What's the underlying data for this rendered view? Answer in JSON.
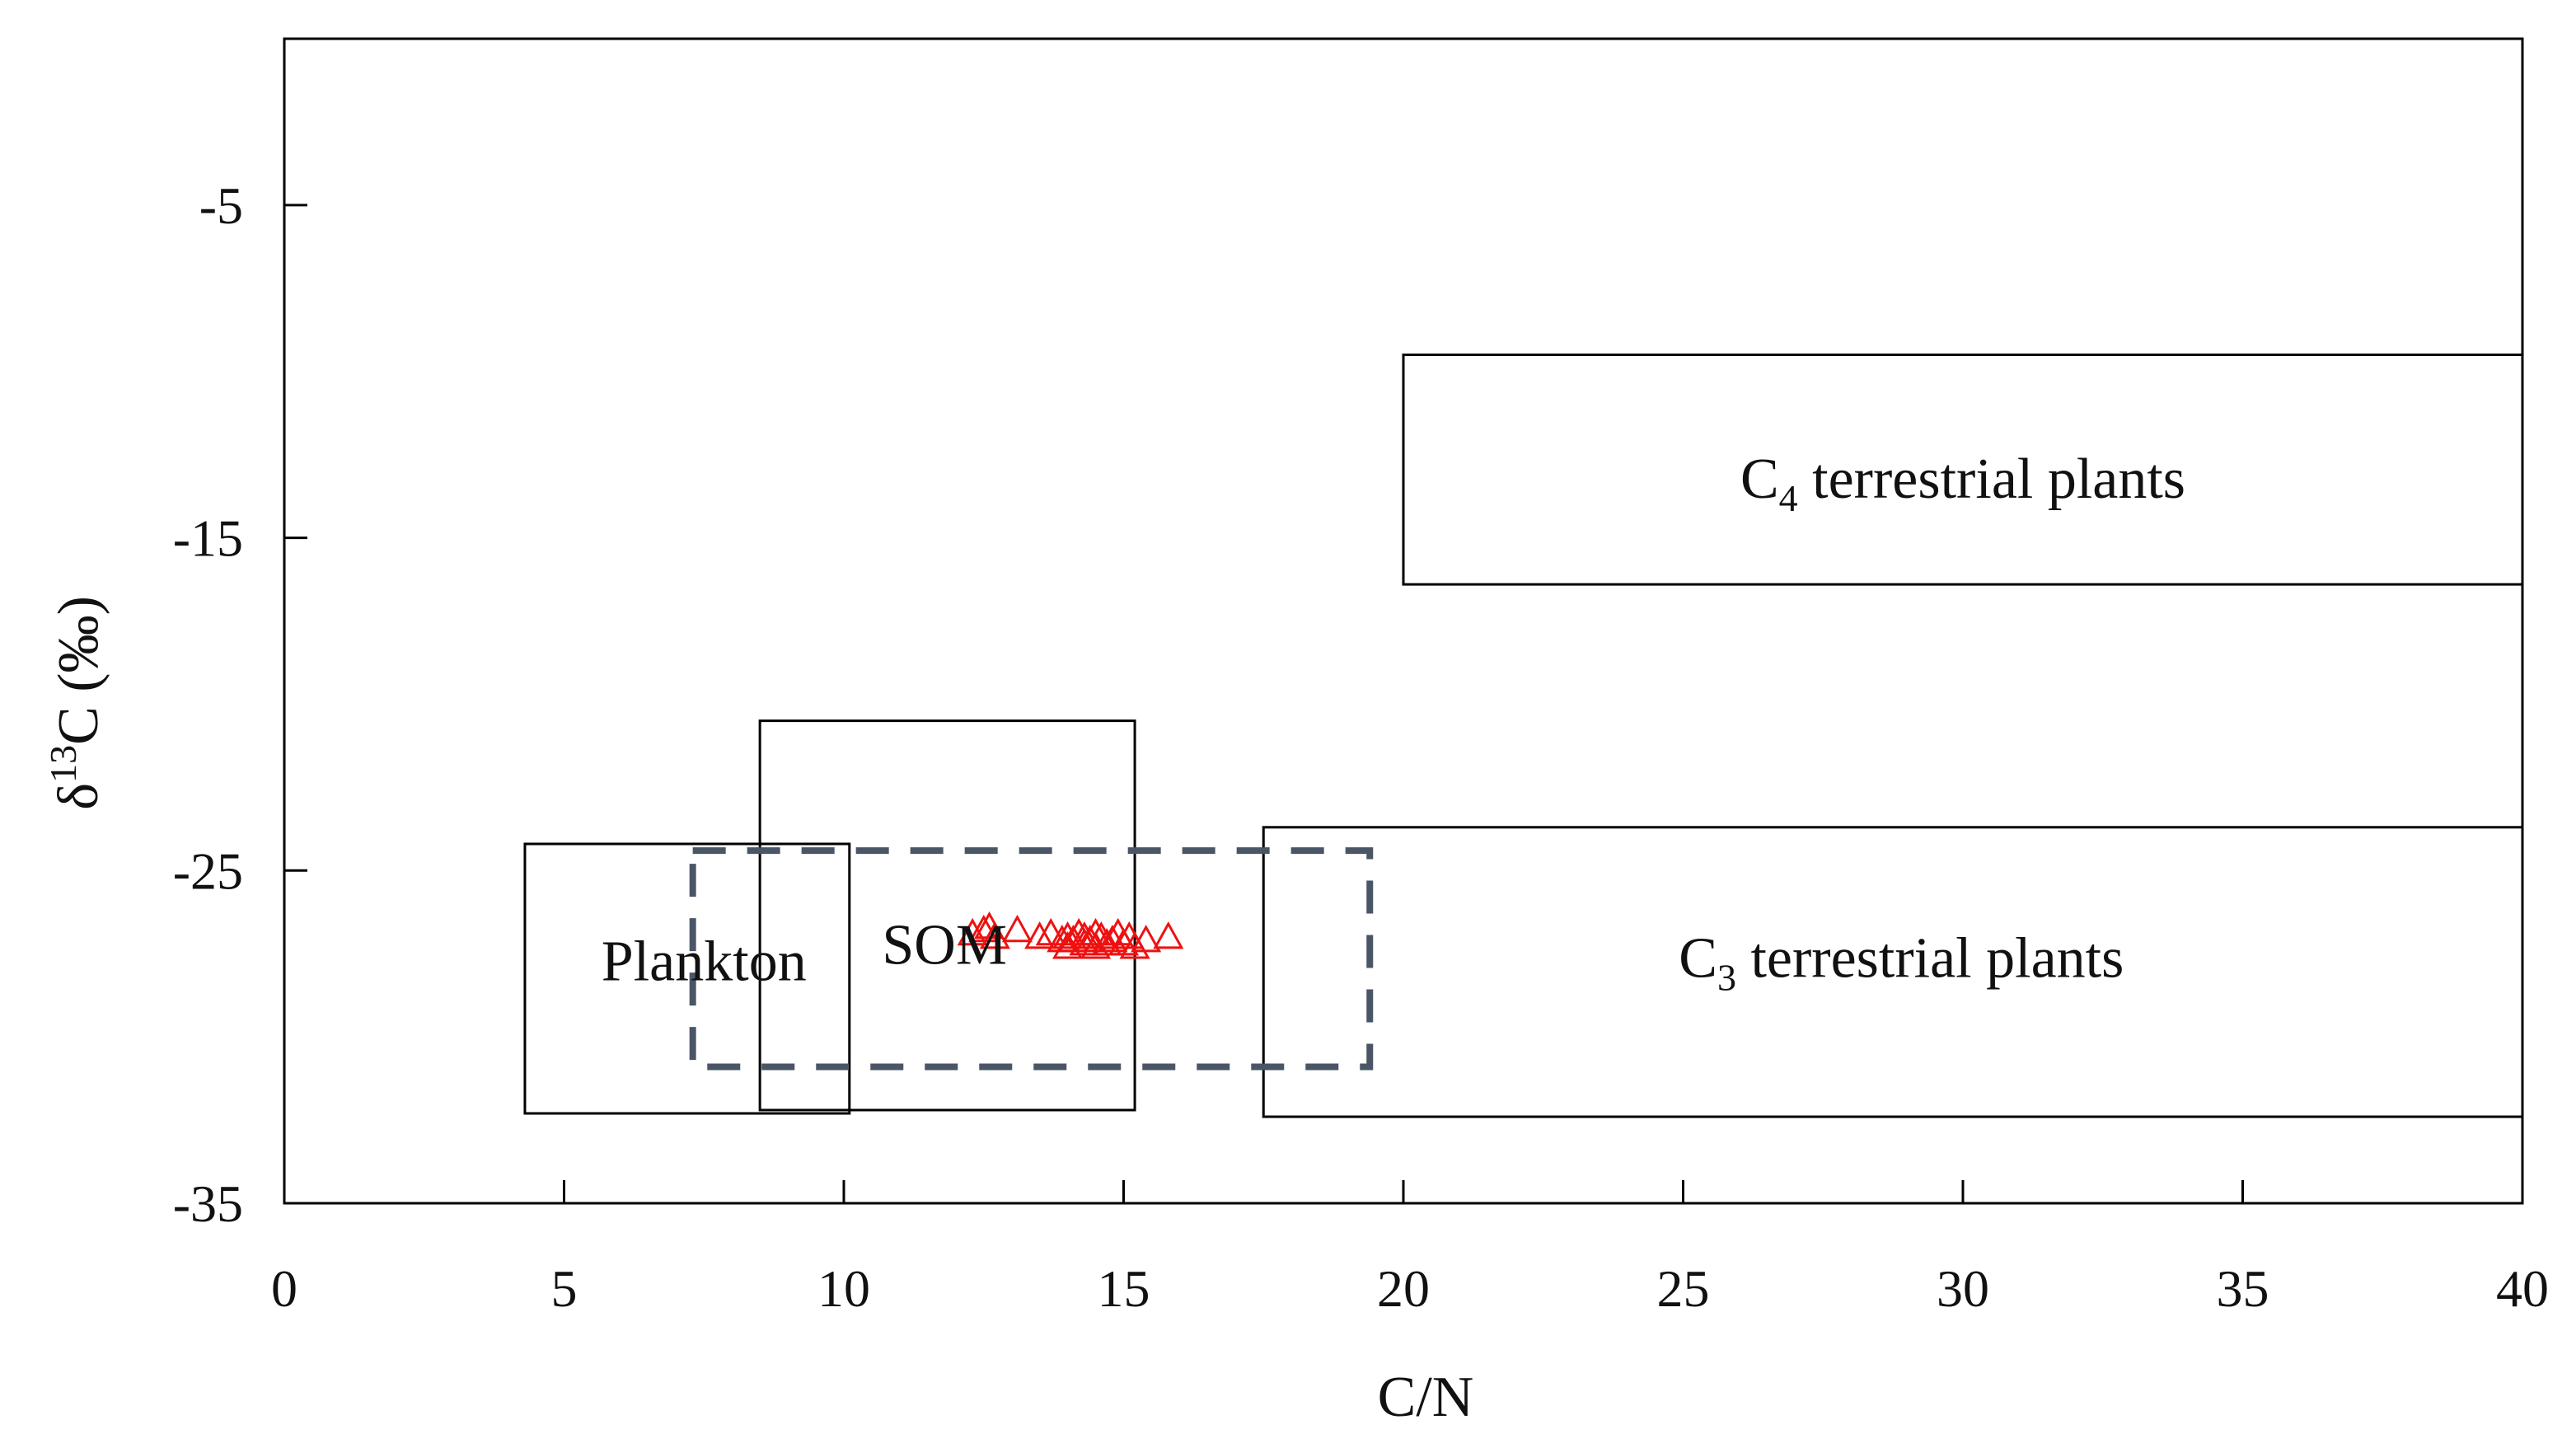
{
  "chart_data": {
    "type": "scatter",
    "xlabel": "C/N",
    "ylabel": {
      "prefix": "δ",
      "sup": "13",
      "suffix": "C (‰)"
    },
    "xlim": [
      0,
      40
    ],
    "ylim": [
      -35,
      0
    ],
    "xticks": [
      0,
      5,
      10,
      15,
      20,
      25,
      30,
      35,
      40
    ],
    "xtick_labels": [
      "0",
      "5",
      "10",
      "15",
      "20",
      "25",
      "30",
      "35",
      "40"
    ],
    "yticks": [
      -5,
      -15,
      -25,
      -35
    ],
    "ytick_labels": [
      "-5",
      "-15",
      "-25",
      "-35"
    ],
    "grid": false,
    "legend": "none",
    "regions": [
      {
        "id": "plankton",
        "label": "Plankton",
        "x": [
          4.3,
          10.1
        ],
        "y": [
          -32.3,
          -24.2
        ],
        "style": "solid",
        "label_at": [
          7.5,
          -28.3
        ]
      },
      {
        "id": "som",
        "label": "SOM",
        "x": [
          8.5,
          15.2
        ],
        "y": [
          -32.2,
          -20.5
        ],
        "style": "solid",
        "label_at": [
          11.8,
          -27.8
        ]
      },
      {
        "id": "c3",
        "label_base": "C",
        "label_sub": "3",
        "label_rest": " terrestrial plants",
        "x": [
          17.5,
          40.0
        ],
        "y": [
          -32.4,
          -23.7
        ],
        "style": "solid",
        "label_at": [
          28.9,
          -28.2
        ]
      },
      {
        "id": "c4",
        "label_base": "C",
        "label_sub": "4",
        "label_rest": " terrestrial plants",
        "x": [
          20.0,
          40.0
        ],
        "y": [
          -16.4,
          -9.5
        ],
        "style": "solid",
        "label_at": [
          30.0,
          -13.8
        ]
      },
      {
        "id": "dashed",
        "label": "",
        "x": [
          7.3,
          19.4
        ],
        "y": [
          -30.9,
          -24.4
        ],
        "style": "dashed"
      }
    ],
    "series": [
      {
        "marker": "triangle-open",
        "color": "#ee1111",
        "points": [
          [
            12.3,
            -26.9
          ],
          [
            12.5,
            -26.8
          ],
          [
            12.6,
            -26.7
          ],
          [
            12.7,
            -27.0
          ],
          [
            13.1,
            -26.8
          ],
          [
            13.5,
            -27.0
          ],
          [
            13.7,
            -26.9
          ],
          [
            13.9,
            -27.1
          ],
          [
            14.0,
            -27.0
          ],
          [
            14.0,
            -27.3
          ],
          [
            14.1,
            -27.1
          ],
          [
            14.2,
            -26.9
          ],
          [
            14.3,
            -27.2
          ],
          [
            14.3,
            -27.0
          ],
          [
            14.4,
            -27.1
          ],
          [
            14.5,
            -27.3
          ],
          [
            14.5,
            -26.9
          ],
          [
            14.6,
            -27.0
          ],
          [
            14.7,
            -27.2
          ],
          [
            14.8,
            -27.1
          ],
          [
            14.9,
            -26.9
          ],
          [
            15.0,
            -27.2
          ],
          [
            15.1,
            -27.0
          ],
          [
            15.2,
            -27.3
          ],
          [
            15.4,
            -27.1
          ],
          [
            15.8,
            -27.0
          ]
        ]
      }
    ],
    "colors": {
      "axis": "#000000",
      "region": "#000000",
      "dashed": "#4a5566",
      "marker": "#ee1111"
    }
  }
}
